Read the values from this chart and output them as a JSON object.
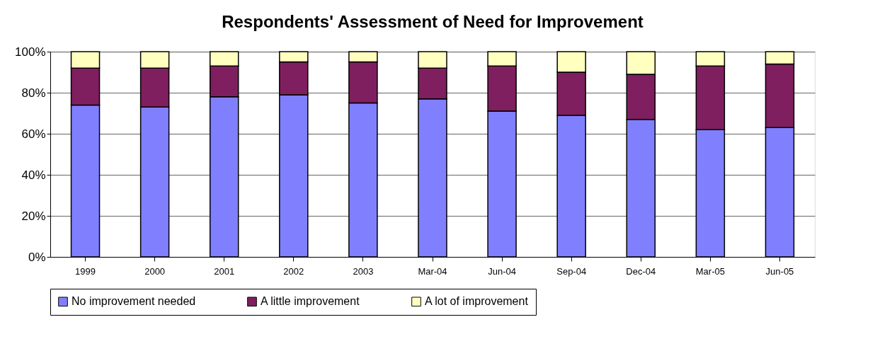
{
  "chart_data": {
    "type": "bar",
    "title": "Respondents' Assessment of Need for Improvement",
    "stacked": true,
    "categories": [
      "1999",
      "2000",
      "2001",
      "2002",
      "2003",
      "Mar-04",
      "Jun-04",
      "Sep-04",
      "Dec-04",
      "Mar-05",
      "Jun-05"
    ],
    "series": [
      {
        "name": "No improvement needed",
        "color": "#8080ff",
        "values": [
          74,
          73,
          78,
          79,
          75,
          77,
          71,
          69,
          67,
          62,
          63
        ]
      },
      {
        "name": "A little improvement",
        "color": "#7f1f5f",
        "values": [
          18,
          19,
          15,
          16,
          20,
          15,
          22,
          21,
          22,
          31,
          31
        ]
      },
      {
        "name": "A lot of improvement",
        "color": "#ffffc0",
        "values": [
          8,
          8,
          7,
          5,
          5,
          8,
          7,
          10,
          11,
          7,
          6
        ]
      }
    ],
    "ylim": [
      0,
      100
    ],
    "yticks": [
      {
        "value": 0,
        "label": "0%"
      },
      {
        "value": 20,
        "label": "20%"
      },
      {
        "value": 40,
        "label": "40%"
      },
      {
        "value": 60,
        "label": "60%"
      },
      {
        "value": 80,
        "label": "80%"
      },
      {
        "value": 100,
        "label": "100%"
      }
    ],
    "grid": "y",
    "legend": "bottom"
  }
}
